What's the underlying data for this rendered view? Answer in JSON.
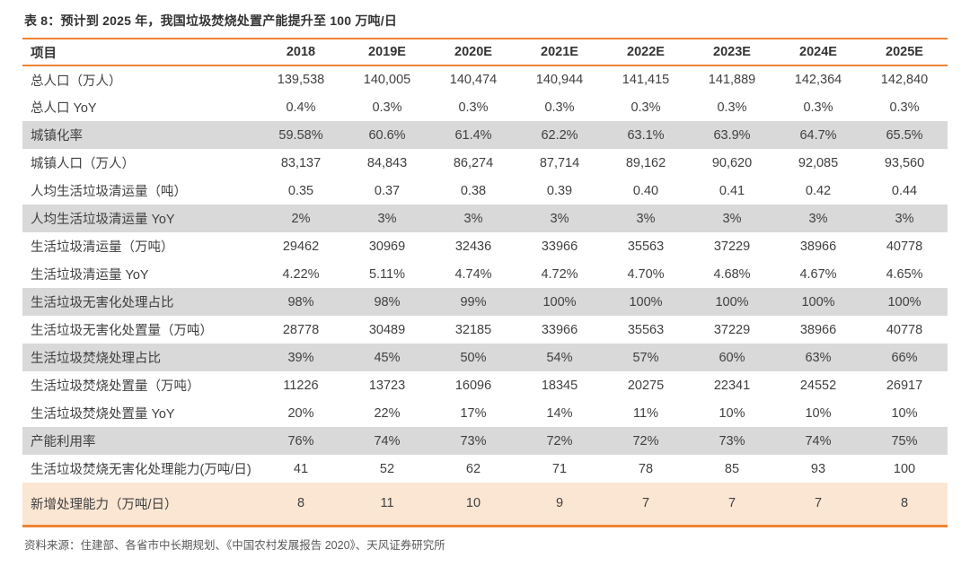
{
  "title": "表 8：预计到 2025 年，我国垃圾焚烧处置产能提升至 100 万吨/日",
  "source": "资料来源：住建部、各省市中长期规划、《中国农村发展报告 2020》、天风证券研究所",
  "colors": {
    "accent_orange": "#ee8434",
    "stripe_gray": "#d9d9d9",
    "highlight_peach": "#fbe6d3",
    "text_dark": "#404040",
    "source_gray": "#595959"
  },
  "chart_data": {
    "type": "table",
    "title": "表 8：预计到 2025 年，我国垃圾焚烧处置产能提升至 100 万吨/日",
    "columns": [
      "项目",
      "2018",
      "2019E",
      "2020E",
      "2021E",
      "2022E",
      "2023E",
      "2024E",
      "2025E"
    ],
    "rows": [
      {
        "label": "总人口（万人）",
        "bg": "white",
        "values": [
          "139,538",
          "140,005",
          "140,474",
          "140,944",
          "141,415",
          "141,889",
          "142,364",
          "142,840"
        ]
      },
      {
        "label": "总人口 YoY",
        "bg": "white",
        "values": [
          "0.4%",
          "0.3%",
          "0.3%",
          "0.3%",
          "0.3%",
          "0.3%",
          "0.3%",
          "0.3%"
        ]
      },
      {
        "label": "城镇化率",
        "bg": "gray",
        "values": [
          "59.58%",
          "60.6%",
          "61.4%",
          "62.2%",
          "63.1%",
          "63.9%",
          "64.7%",
          "65.5%"
        ]
      },
      {
        "label": "城镇人口（万人）",
        "bg": "white",
        "values": [
          "83,137",
          "84,843",
          "86,274",
          "87,714",
          "89,162",
          "90,620",
          "92,085",
          "93,560"
        ]
      },
      {
        "label": "人均生活垃圾清运量（吨）",
        "bg": "white",
        "values": [
          "0.35",
          "0.37",
          "0.38",
          "0.39",
          "0.40",
          "0.41",
          "0.42",
          "0.44"
        ]
      },
      {
        "label": "人均生活垃圾清运量  YoY",
        "bg": "gray",
        "values": [
          "2%",
          "3%",
          "3%",
          "3%",
          "3%",
          "3%",
          "3%",
          "3%"
        ]
      },
      {
        "label": "生活垃圾清运量（万吨）",
        "bg": "white",
        "values": [
          "29462",
          "30969",
          "32436",
          "33966",
          "35563",
          "37229",
          "38966",
          "40778"
        ]
      },
      {
        "label": "生活垃圾清运量 YoY",
        "bg": "white",
        "values": [
          "4.22%",
          "5.11%",
          "4.74%",
          "4.72%",
          "4.70%",
          "4.68%",
          "4.67%",
          "4.65%"
        ]
      },
      {
        "label": "生活垃圾无害化处理占比",
        "bg": "gray",
        "values": [
          "98%",
          "98%",
          "99%",
          "100%",
          "100%",
          "100%",
          "100%",
          "100%"
        ]
      },
      {
        "label": "生活垃圾无害化处置量（万吨）",
        "bg": "white",
        "values": [
          "28778",
          "30489",
          "32185",
          "33966",
          "35563",
          "37229",
          "38966",
          "40778"
        ]
      },
      {
        "label": "生活垃圾焚烧处理占比",
        "bg": "gray",
        "values": [
          "39%",
          "45%",
          "50%",
          "54%",
          "57%",
          "60%",
          "63%",
          "66%"
        ]
      },
      {
        "label": "生活垃圾焚烧处置量（万吨）",
        "bg": "white",
        "values": [
          "11226",
          "13723",
          "16096",
          "18345",
          "20275",
          "22341",
          "24552",
          "26917"
        ]
      },
      {
        "label": "生活垃圾焚烧处置量 YoY",
        "bg": "white",
        "values": [
          "20%",
          "22%",
          "17%",
          "14%",
          "11%",
          "10%",
          "10%",
          "10%"
        ]
      },
      {
        "label": "产能利用率",
        "bg": "gray",
        "values": [
          "76%",
          "74%",
          "73%",
          "72%",
          "72%",
          "73%",
          "74%",
          "75%"
        ]
      },
      {
        "label": "生活垃圾焚烧无害化处理能力(万吨/日)",
        "bg": "white",
        "values": [
          "41",
          "52",
          "62",
          "71",
          "78",
          "85",
          "93",
          "100"
        ]
      },
      {
        "label": "新增处理能力（万吨/日）",
        "bg": "highlight",
        "values": [
          "8",
          "11",
          "10",
          "9",
          "7",
          "7",
          "7",
          "8"
        ]
      }
    ]
  }
}
